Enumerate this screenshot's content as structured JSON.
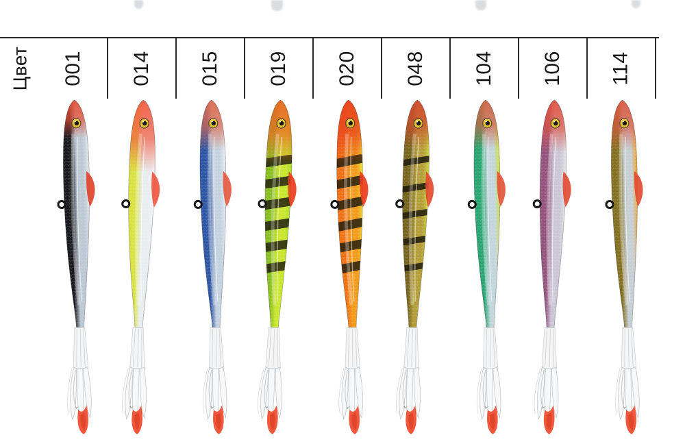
{
  "header": {
    "row_label": "Цвет"
  },
  "style": {
    "rule_color": "#2b2b2b",
    "label_color": "#161616",
    "skirt_fill": "#eef2f4",
    "skirt_edge": "#c2c8cc",
    "sleeve_fill": "#eceff1",
    "sleeve_edge": "#b9bfc3",
    "tip_color": "#f04a2c",
    "eye_color": "#e3c235",
    "pupil_color": "#101010",
    "loop_color": "#151515"
  },
  "lures": [
    {
      "code": "001",
      "back": "#191a20",
      "mid": "#bcc8d4",
      "belly": "#e2e9ee",
      "head": "#e85036",
      "headLen": 42,
      "fin": "#e0442e",
      "stripes": null
    },
    {
      "code": "014",
      "back": "#d9e242",
      "mid": "#e8edf0",
      "belly": "#f4f6f7",
      "head": "#f25a40",
      "headLen": 92,
      "fin": "#ee5840",
      "stripes": null
    },
    {
      "code": "015",
      "back": "#2e56a4",
      "mid": "#c4d2e0",
      "belly": "#eaf0f4",
      "head": "#e06a4c",
      "headLen": 60,
      "fin": "#e55a42",
      "stripes": null
    },
    {
      "code": "019",
      "back": "#8abf22",
      "mid": "#cbe62f",
      "belly": "#a9da26",
      "head": "#ea6426",
      "headLen": 80,
      "fin": "#ea3e20",
      "stripes": {
        "color": "#23220f",
        "count": 6,
        "h": 13
      }
    },
    {
      "code": "020",
      "back": "#ee7214",
      "mid": "#f29c1c",
      "belly": "#e9e432",
      "head": "#e94020",
      "headLen": 78,
      "fin": "#ea3c1e",
      "stripes": {
        "color": "#26200e",
        "count": 6,
        "h": 13
      }
    },
    {
      "code": "048",
      "back": "#77651e",
      "mid": "#b49e3a",
      "belly": "#cfd63a",
      "head": "#d44c30",
      "headLen": 58,
      "fin": "#e24c30",
      "stripes": {
        "color": "#1d1a0c",
        "count": 5,
        "h": 9
      }
    },
    {
      "code": "104",
      "back": "#2aa572",
      "mid": "#c2d6dc",
      "belly": "#cfe03c",
      "head": "#d2603e",
      "headLen": 58,
      "fin": "#e25438",
      "stripes": null
    },
    {
      "code": "106",
      "back": "#94537e",
      "mid": "#ccc6d6",
      "belly": "#e2e6e6",
      "head": "#e25440",
      "headLen": 62,
      "fin": "#e24c34",
      "stripes": null
    },
    {
      "code": "114",
      "back": "#837021",
      "mid": "#c6cfd4",
      "belly": "#eda432",
      "head": "#dc5840",
      "headLen": 60,
      "fin": "#e24c30",
      "stripes": null
    }
  ]
}
